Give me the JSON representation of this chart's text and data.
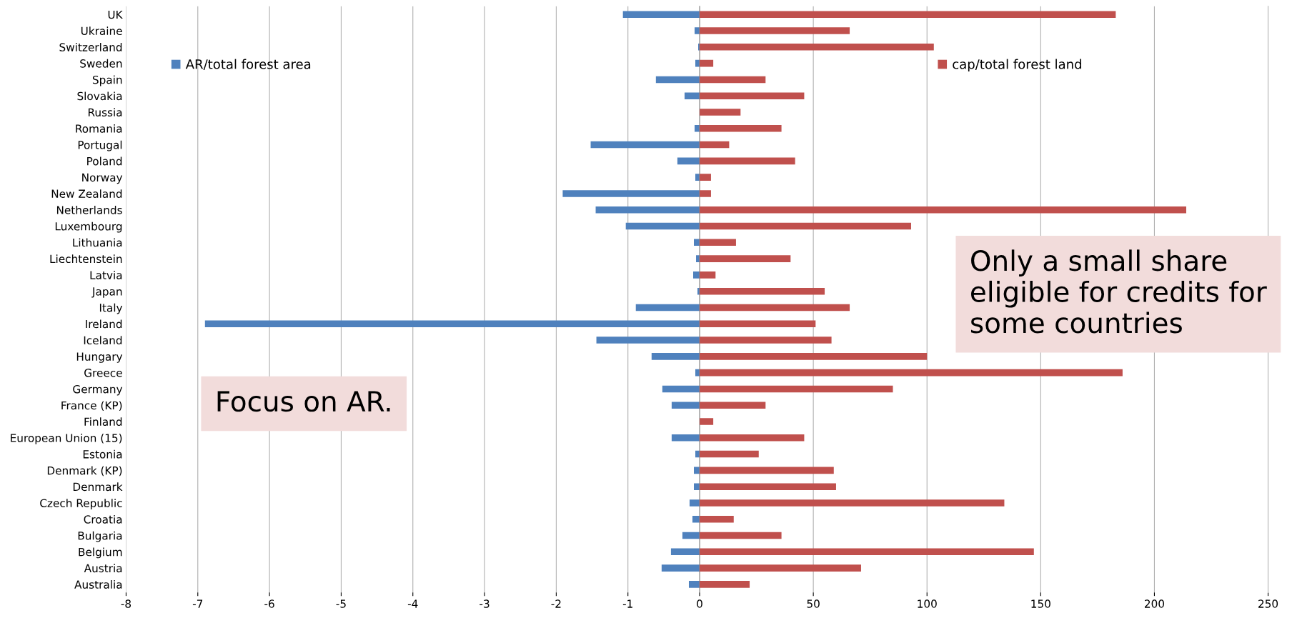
{
  "chart_data": [
    {
      "type": "bar",
      "orientation": "horizontal",
      "categories": [
        "UK",
        "Ukraine",
        "Switzerland",
        "Sweden",
        "Spain",
        "Slovakia",
        "Russia",
        "Romania",
        "Portugal",
        "Poland",
        "Norway",
        "New Zealand",
        "Netherlands",
        "Luxembourg",
        "Lithuania",
        "Liechtenstein",
        "Latvia",
        "Japan",
        "Italy",
        "Ireland",
        "Iceland",
        "Hungary",
        "Greece",
        "Germany",
        "France (KP)",
        "Finland",
        "European Union (15)",
        "Estonia",
        "Denmark (KP)",
        "Denmark",
        "Czech Republic",
        "Croatia",
        "Bulgaria",
        "Belgium",
        "Austria",
        "Australia"
      ],
      "series": [
        {
          "name": "AR/total forest area",
          "color": "#4f81bd",
          "values": [
            -1.07,
            -0.07,
            -0.02,
            -0.06,
            -0.61,
            -0.21,
            null,
            -0.07,
            -1.52,
            -0.31,
            -0.06,
            -1.91,
            -1.45,
            -1.03,
            -0.08,
            -0.05,
            -0.09,
            -0.03,
            -0.89,
            -6.9,
            -1.44,
            -0.67,
            -0.06,
            -0.52,
            -0.39,
            null,
            -0.39,
            -0.06,
            -0.08,
            -0.08,
            -0.14,
            -0.1,
            -0.24,
            -0.4,
            -0.53,
            -0.15
          ]
        }
      ],
      "xlim": [
        -8,
        0
      ],
      "xticks": [
        -8,
        -7,
        -6,
        -5,
        -4,
        -3,
        -2,
        -1
      ],
      "grid": "x",
      "legend": "top left",
      "annotations": [
        "Focus on AR."
      ]
    },
    {
      "type": "bar",
      "orientation": "horizontal",
      "categories": [
        null,
        null,
        null,
        null,
        null,
        null,
        null,
        null,
        null,
        null,
        null,
        null,
        null,
        null,
        null,
        null,
        null,
        null,
        null,
        null,
        null,
        null,
        null,
        null,
        null,
        null,
        null,
        null,
        null,
        null,
        null,
        null,
        null,
        null,
        null,
        null
      ],
      "series": [
        {
          "name": "cap/total forest land",
          "color": "#c0504d",
          "values": [
            183,
            66,
            103,
            6,
            29,
            46,
            18,
            36,
            13,
            42,
            5,
            5,
            214,
            93,
            16,
            40,
            7,
            55,
            66,
            51,
            58,
            100,
            186,
            85,
            29,
            6,
            46,
            26,
            59,
            60,
            134,
            15,
            36,
            147,
            71,
            22
          ]
        }
      ],
      "xlim": [
        0,
        250
      ],
      "xticks": [
        0,
        50,
        100,
        150,
        200,
        250
      ],
      "grid": "x",
      "legend": "top right",
      "tick_labels": "x",
      "annotations": [
        "Only a small share eligible for credits for some countries"
      ]
    }
  ]
}
